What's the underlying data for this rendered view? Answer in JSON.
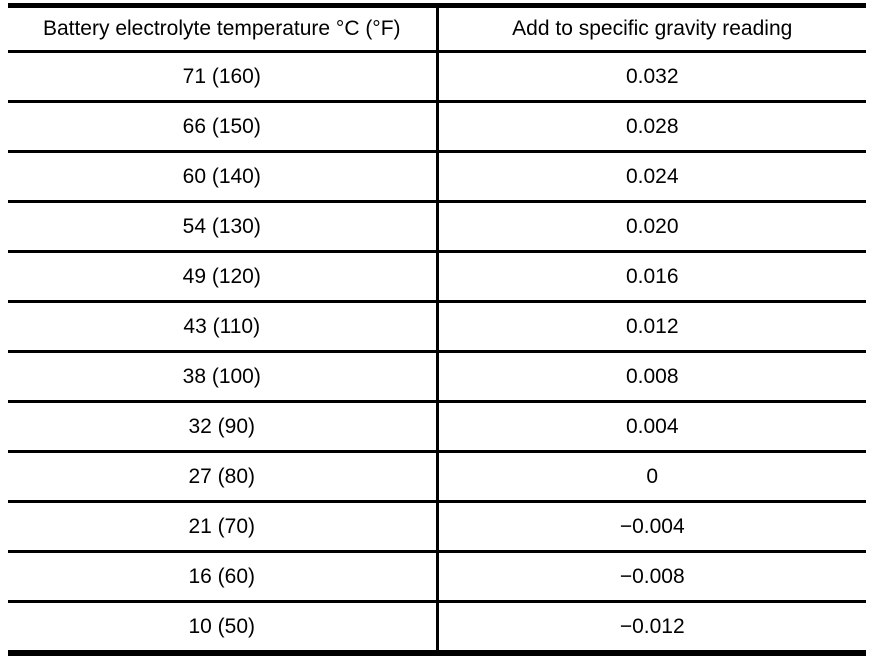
{
  "table": {
    "columns": {
      "temperature": "Battery electrolyte temperature °C (°F)",
      "gravity": "Add to specific gravity reading"
    },
    "rows": [
      {
        "temperature": "71 (160)",
        "gravity": "0.032"
      },
      {
        "temperature": "66 (150)",
        "gravity": "0.028"
      },
      {
        "temperature": "60 (140)",
        "gravity": "0.024"
      },
      {
        "temperature": "54 (130)",
        "gravity": "0.020"
      },
      {
        "temperature": "49 (120)",
        "gravity": "0.016"
      },
      {
        "temperature": "43 (110)",
        "gravity": "0.012"
      },
      {
        "temperature": "38 (100)",
        "gravity": "0.008"
      },
      {
        "temperature": "32 (90)",
        "gravity": "0.004"
      },
      {
        "temperature": "27 (80)",
        "gravity": "0"
      },
      {
        "temperature": "21 (70)",
        "gravity": "−0.004"
      },
      {
        "temperature": "16 (60)",
        "gravity": "−0.008"
      },
      {
        "temperature": "10 (50)",
        "gravity": "−0.012"
      }
    ]
  }
}
